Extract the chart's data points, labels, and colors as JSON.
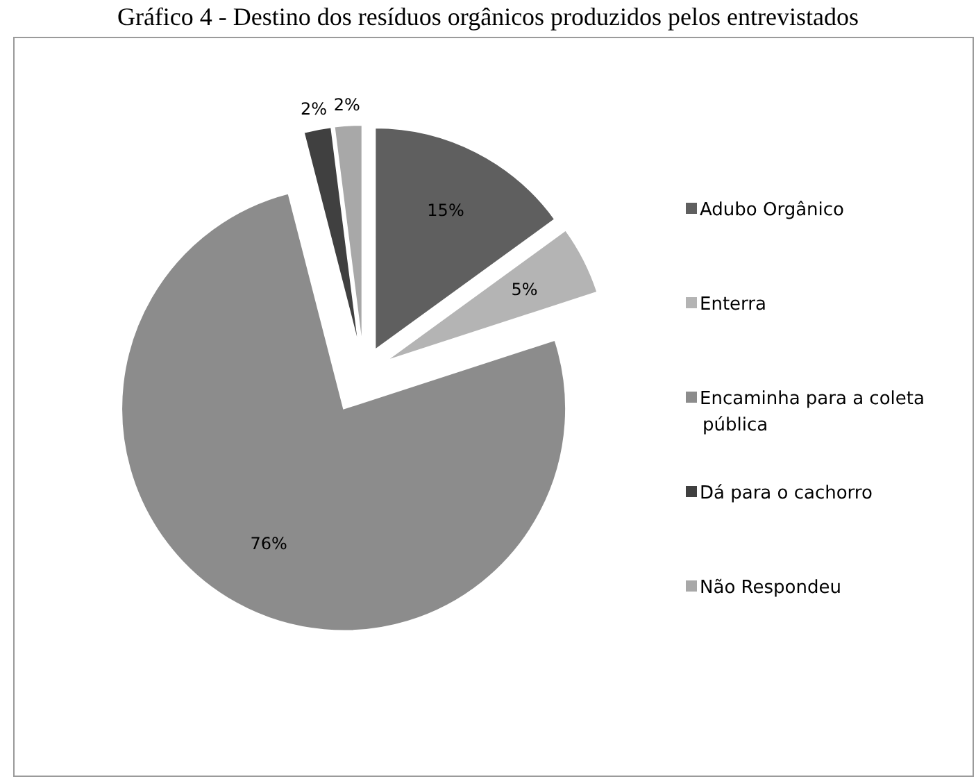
{
  "chart_data": {
    "type": "pie",
    "title": "Gráfico 4 - Destino dos resíduos orgânicos produzidos pelos entrevistados",
    "categories": [
      "Adubo Orgânico",
      "Enterra",
      "Encaminha para a coleta pública",
      "Dá para o cachorro",
      "Não Respondeu"
    ],
    "values": [
      15,
      5,
      76,
      2,
      2
    ],
    "colors": [
      "#5f5f5f",
      "#b4b4b4",
      "#8c8c8c",
      "#404040",
      "#a8a8a8"
    ],
    "value_labels": [
      "15%",
      "5%",
      "76%",
      "2%",
      "2%"
    ],
    "legend": "right"
  }
}
